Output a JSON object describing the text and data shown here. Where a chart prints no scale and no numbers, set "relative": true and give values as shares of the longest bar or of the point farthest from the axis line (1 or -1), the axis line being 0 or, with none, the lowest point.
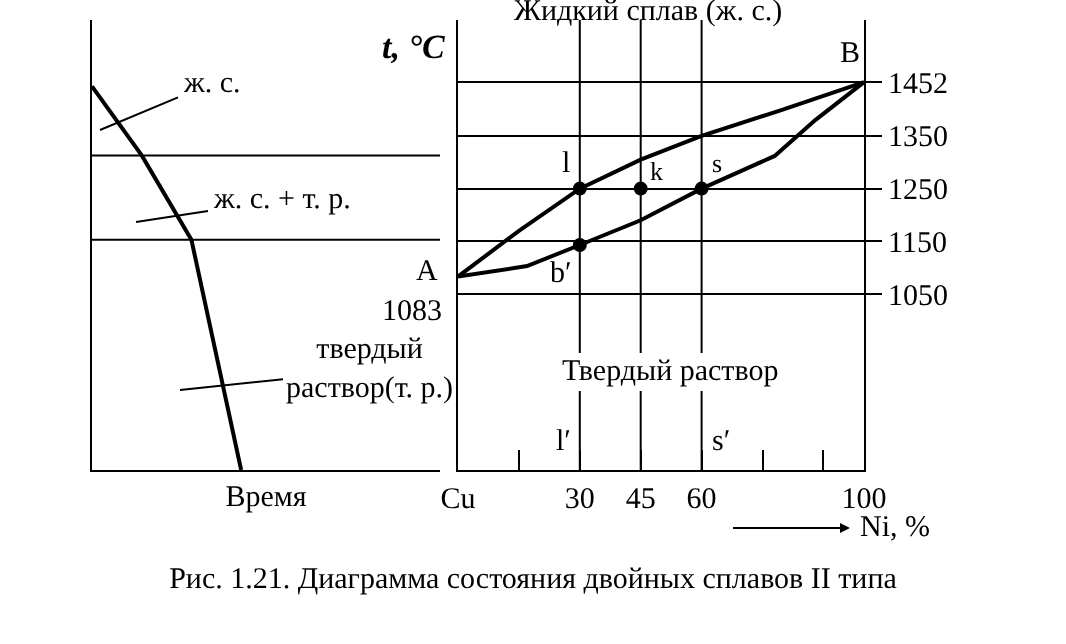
{
  "chart_data": [
    {
      "type": "line",
      "xlabel": "Время",
      "categories": [
        null,
        null,
        null,
        null
      ],
      "values": [
        1,
        0.82,
        0.6,
        0
      ],
      "color": "#000000",
      "relative": true,
      "ref_lines": [
        {
          "axis": "y",
          "value": 0.82
        },
        {
          "axis": "y",
          "value": 0.6
        }
      ],
      "annotations": [
        "ж. с.",
        "ж. с. + т. р.",
        "твердый\nраствор(т. р.)"
      ]
    },
    {
      "type": "line",
      "ylabel": "t, °C",
      "xlabel": "Ni, %",
      "xlim": [
        0,
        100
      ],
      "xticks": [
        {
          "value": 0,
          "label": "Cu"
        },
        {
          "value": 15,
          "label": null
        },
        30,
        45,
        60,
        {
          "value": 75,
          "label": null
        },
        {
          "value": 90,
          "label": null
        },
        100
      ],
      "ylim": [
        716,
        1570
      ],
      "yticks": [
        1050,
        1150,
        1250,
        1350,
        1452
      ],
      "grid": "y",
      "series": [
        {
          "color": "#000000",
          "x": [
            0,
            15,
            30,
            45,
            60,
            80,
            100
          ],
          "values": [
            1083,
            1170,
            1250,
            1305,
            1350,
            1400,
            1452
          ]
        },
        {
          "color": "#000000",
          "x": [
            0,
            17,
            30,
            45,
            60,
            78,
            88,
            100
          ],
          "values": [
            1083,
            1103,
            1143,
            1190,
            1250,
            1312,
            1380,
            1452
          ]
        },
        {
          "type": "scatter",
          "marker": "circle",
          "color": "#000000",
          "x": [
            30,
            30,
            60,
            45
          ],
          "values": [
            1250,
            1143,
            1250,
            1250
          ]
        }
      ],
      "ref_lines": [
        {
          "axis": "x",
          "value": 30
        },
        {
          "axis": "x",
          "value": 45
        },
        {
          "axis": "x",
          "value": 60
        }
      ],
      "annotations": [
        "Жидкий сплав (ж. с.)",
        "Твердый раствор",
        "Рис. 1.21.  Диаграмма состояния двойных сплавов II типа",
        {
          "text": "A",
          "x": 0,
          "y": 1083
        },
        {
          "text": "1083",
          "x": 0,
          "y": 1083
        },
        {
          "text": "B",
          "x": 100,
          "y": 1452
        },
        {
          "text": "l",
          "x": 30,
          "y": 1250
        },
        {
          "text": "k",
          "x": 45,
          "y": 1305
        },
        {
          "text": "s",
          "x": 60,
          "y": 1250
        },
        {
          "text": "b′",
          "x": 30,
          "y": 1143
        },
        {
          "text": "l′",
          "x": 30,
          "y": 716
        },
        {
          "text": "s′",
          "x": 60,
          "y": 716
        }
      ]
    }
  ]
}
